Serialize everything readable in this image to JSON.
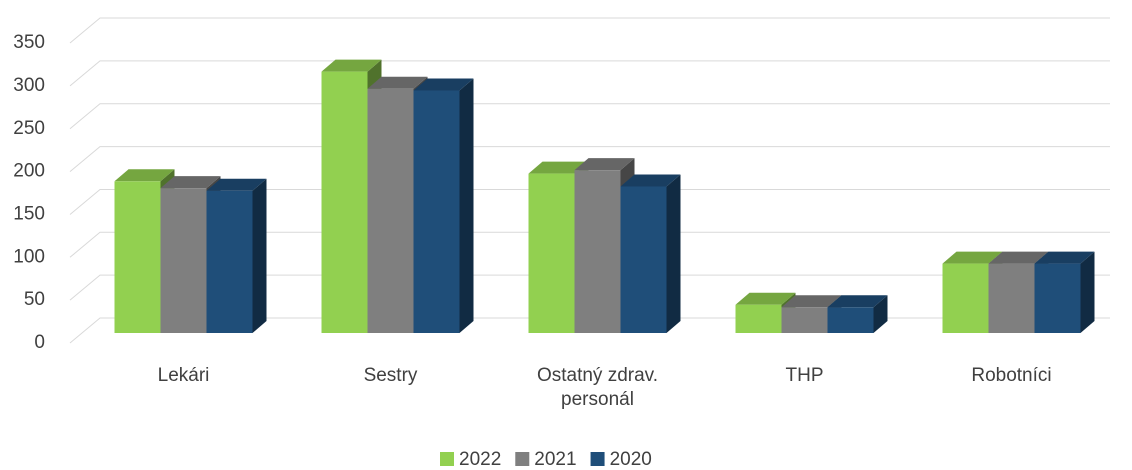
{
  "chart_data": {
    "type": "bar3d",
    "categories": [
      "Lekári",
      "Sestry",
      "Ostatný zdrav. personál",
      "THP",
      "Robotníci"
    ],
    "series": [
      {
        "name": "2022",
        "color": "#92d050",
        "values": [
          177,
          305,
          186,
          33,
          81
        ]
      },
      {
        "name": "2021",
        "color": "#7f7f7f",
        "values": [
          169,
          285,
          190,
          30,
          81
        ]
      },
      {
        "name": "2020",
        "color": "#1f4e79",
        "values": [
          166,
          283,
          171,
          30,
          81
        ]
      }
    ],
    "ylim": [
      0,
      350
    ],
    "yticks": [
      0,
      50,
      100,
      150,
      200,
      250,
      300,
      350
    ],
    "grid": true,
    "legend": "bottom"
  }
}
